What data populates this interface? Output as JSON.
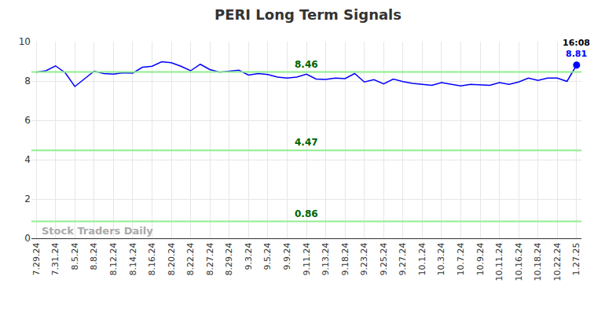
{
  "chart_data": {
    "type": "line",
    "title": "PERI Long Term Signals",
    "categories": [
      "7.29.24",
      null,
      "7.31.24",
      null,
      "8.5.24",
      null,
      "8.8.24",
      null,
      "8.12.24",
      null,
      "8.14.24",
      null,
      "8.16.24",
      null,
      "8.20.24",
      null,
      "8.22.24",
      null,
      "8.27.24",
      null,
      "8.29.24",
      null,
      "9.3.24",
      null,
      "9.5.24",
      null,
      "9.9.24",
      null,
      "9.11.24",
      null,
      "9.13.24",
      null,
      "9.18.24",
      null,
      "9.23.24",
      null,
      "9.25.24",
      null,
      "9.27.24",
      null,
      "10.1.24",
      null,
      "10.3.24",
      null,
      "10.7.24",
      null,
      "10.9.24",
      null,
      "10.11.24",
      null,
      "10.16.24",
      null,
      "10.18.24",
      null,
      "10.22.24",
      null,
      "1.27.25"
    ],
    "values": [
      8.45,
      8.52,
      8.77,
      8.42,
      7.72,
      8.12,
      8.5,
      8.38,
      8.35,
      8.42,
      8.4,
      8.7,
      8.75,
      8.98,
      8.93,
      8.75,
      8.52,
      8.85,
      8.58,
      8.45,
      8.5,
      8.55,
      8.3,
      8.38,
      8.33,
      8.2,
      8.15,
      8.2,
      8.35,
      8.1,
      8.08,
      8.15,
      8.12,
      8.38,
      7.95,
      8.07,
      7.85,
      8.1,
      7.97,
      7.88,
      7.83,
      7.78,
      7.92,
      7.85,
      7.75,
      7.83,
      7.8,
      7.78,
      7.92,
      7.83,
      7.95,
      8.15,
      8.03,
      8.15,
      8.15,
      7.98,
      8.81
    ],
    "color": "#0000ff",
    "signals": [
      8.46,
      4.47,
      0.86
    ],
    "signal_color": "#90ee90",
    "signal_label_color": "#006400",
    "annotations": [
      {
        "text": "16:08"
      },
      {
        "text": "8.81"
      }
    ],
    "watermark": "Stock Traders Daily",
    "ylim": [
      0,
      10
    ],
    "yticks": [
      0,
      2,
      4,
      6,
      8,
      10
    ],
    "grid": true
  }
}
